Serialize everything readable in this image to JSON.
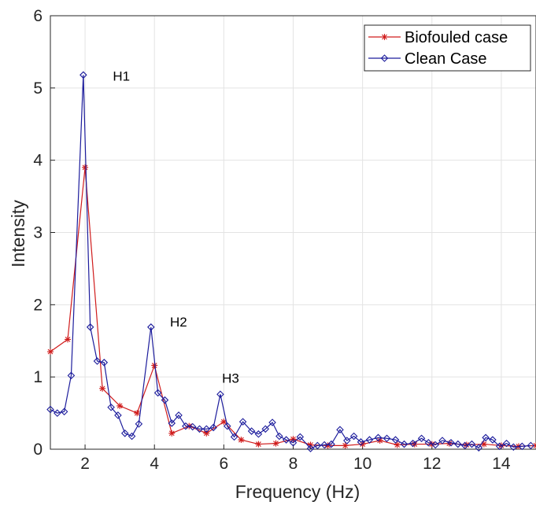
{
  "chart_data": {
    "type": "line",
    "xlabel": "Frequency (Hz)",
    "ylabel": "Intensity",
    "xlim": [
      1,
      15
    ],
    "ylim": [
      0,
      6
    ],
    "x_ticks": [
      2,
      4,
      6,
      8,
      10,
      12,
      14
    ],
    "y_ticks": [
      0,
      1,
      2,
      3,
      4,
      5,
      6
    ],
    "grid": true,
    "legend_position": "top-right",
    "series": [
      {
        "name": "Biofouled case",
        "color": "#d01c1c",
        "marker": "asterisk",
        "points": [
          [
            1.0,
            1.35
          ],
          [
            1.5,
            1.52
          ],
          [
            2.0,
            3.9
          ],
          [
            2.5,
            0.84
          ],
          [
            3.0,
            0.6
          ],
          [
            3.5,
            0.5
          ],
          [
            4.0,
            1.16
          ],
          [
            4.5,
            0.22
          ],
          [
            5.0,
            0.32
          ],
          [
            5.5,
            0.22
          ],
          [
            6.0,
            0.38
          ],
          [
            6.5,
            0.13
          ],
          [
            7.0,
            0.07
          ],
          [
            7.5,
            0.08
          ],
          [
            8.0,
            0.14
          ],
          [
            8.5,
            0.06
          ],
          [
            9.0,
            0.05
          ],
          [
            9.5,
            0.05
          ],
          [
            10.0,
            0.07
          ],
          [
            10.5,
            0.12
          ],
          [
            11.0,
            0.06
          ],
          [
            11.5,
            0.07
          ],
          [
            12.0,
            0.07
          ],
          [
            12.5,
            0.08
          ],
          [
            13.0,
            0.06
          ],
          [
            13.5,
            0.07
          ],
          [
            14.0,
            0.05
          ],
          [
            14.5,
            0.04
          ],
          [
            15.0,
            0.05
          ]
        ]
      },
      {
        "name": "Clean Case",
        "color": "#1c1c9c",
        "marker": "diamond",
        "points": [
          [
            1.0,
            0.55
          ],
          [
            1.2,
            0.5
          ],
          [
            1.4,
            0.52
          ],
          [
            1.6,
            1.02
          ],
          [
            1.95,
            5.18
          ],
          [
            2.15,
            1.69
          ],
          [
            2.35,
            1.22
          ],
          [
            2.55,
            1.2
          ],
          [
            2.75,
            0.58
          ],
          [
            2.95,
            0.47
          ],
          [
            3.15,
            0.22
          ],
          [
            3.35,
            0.18
          ],
          [
            3.55,
            0.35
          ],
          [
            3.9,
            1.69
          ],
          [
            4.1,
            0.78
          ],
          [
            4.3,
            0.68
          ],
          [
            4.5,
            0.36
          ],
          [
            4.7,
            0.47
          ],
          [
            4.9,
            0.32
          ],
          [
            5.1,
            0.31
          ],
          [
            5.3,
            0.28
          ],
          [
            5.5,
            0.28
          ],
          [
            5.7,
            0.3
          ],
          [
            5.9,
            0.76
          ],
          [
            6.1,
            0.32
          ],
          [
            6.3,
            0.17
          ],
          [
            6.55,
            0.38
          ],
          [
            6.8,
            0.25
          ],
          [
            7.0,
            0.21
          ],
          [
            7.2,
            0.28
          ],
          [
            7.4,
            0.37
          ],
          [
            7.6,
            0.18
          ],
          [
            7.8,
            0.13
          ],
          [
            8.0,
            0.09
          ],
          [
            8.2,
            0.17
          ],
          [
            8.5,
            0.01
          ],
          [
            8.7,
            0.05
          ],
          [
            8.9,
            0.06
          ],
          [
            9.1,
            0.07
          ],
          [
            9.35,
            0.27
          ],
          [
            9.55,
            0.12
          ],
          [
            9.75,
            0.18
          ],
          [
            9.95,
            0.1
          ],
          [
            10.2,
            0.13
          ],
          [
            10.45,
            0.16
          ],
          [
            10.7,
            0.15
          ],
          [
            10.95,
            0.13
          ],
          [
            11.2,
            0.07
          ],
          [
            11.45,
            0.08
          ],
          [
            11.7,
            0.15
          ],
          [
            11.9,
            0.09
          ],
          [
            12.1,
            0.06
          ],
          [
            12.3,
            0.12
          ],
          [
            12.55,
            0.09
          ],
          [
            12.75,
            0.07
          ],
          [
            12.95,
            0.05
          ],
          [
            13.15,
            0.07
          ],
          [
            13.35,
            0.02
          ],
          [
            13.55,
            0.16
          ],
          [
            13.75,
            0.13
          ],
          [
            13.95,
            0.04
          ],
          [
            14.15,
            0.08
          ],
          [
            14.35,
            0.03
          ],
          [
            14.6,
            0.04
          ],
          [
            14.85,
            0.05
          ]
        ]
      }
    ],
    "annotations": [
      {
        "text": "H1",
        "x": 2.8,
        "y": 5.1
      },
      {
        "text": "H2",
        "x": 4.45,
        "y": 1.7
      },
      {
        "text": "H3",
        "x": 5.95,
        "y": 0.92
      }
    ]
  }
}
